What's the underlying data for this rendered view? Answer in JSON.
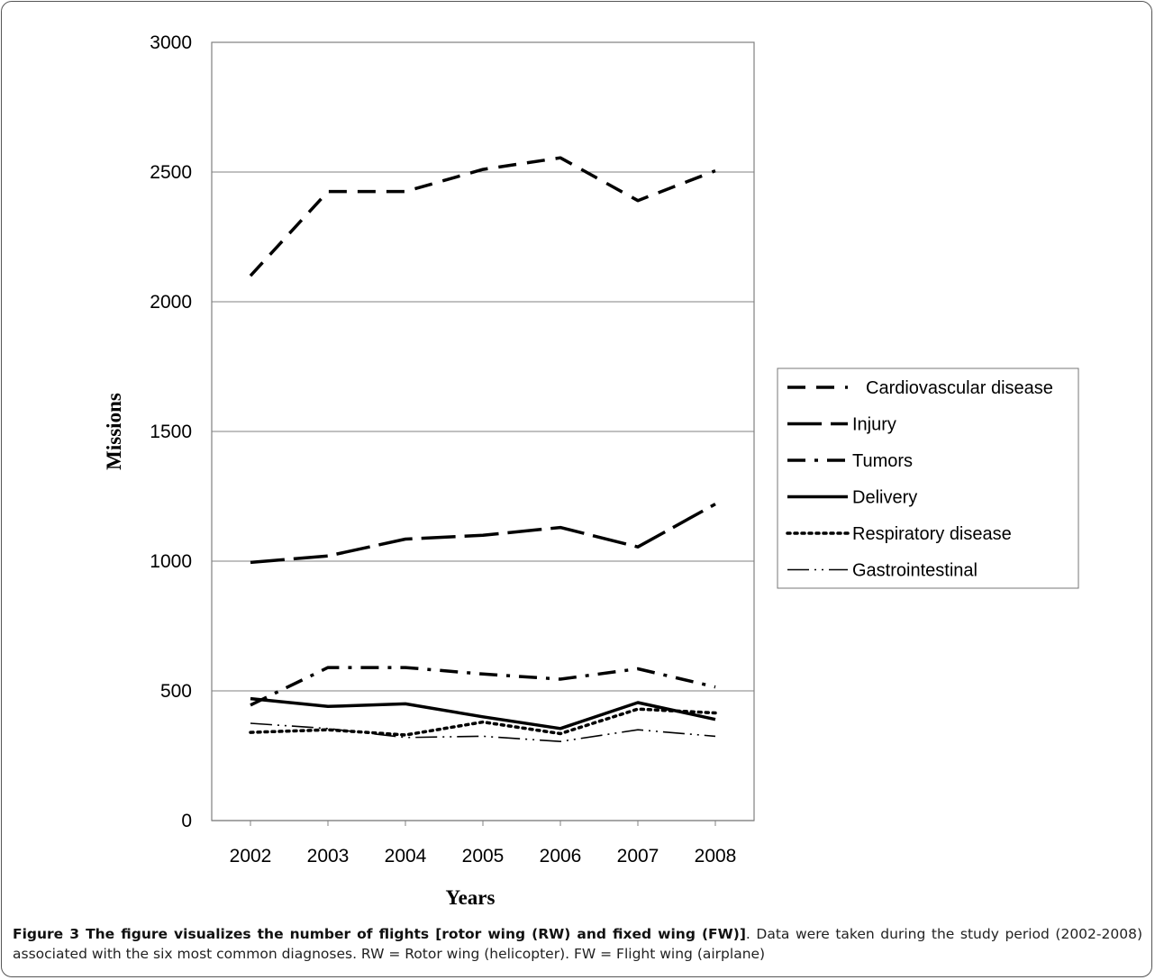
{
  "chart_data": {
    "type": "line",
    "xlabel": "Years",
    "ylabel": "Missions",
    "ylim": [
      0,
      3000
    ],
    "yticks": [
      0,
      500,
      1000,
      1500,
      2000,
      2500,
      3000
    ],
    "grid": "horizontal major gridlines",
    "legend_position": "right",
    "categories": [
      "2002",
      "2003",
      "2004",
      "2005",
      "2006",
      "2007",
      "2008"
    ],
    "series": [
      {
        "name": "Cardiovascular disease",
        "style": "dash",
        "values": [
          2100,
          2425,
          2425,
          2510,
          2555,
          2390,
          2505
        ]
      },
      {
        "name": "Injury",
        "style": "long-dash",
        "values": [
          995,
          1020,
          1085,
          1100,
          1130,
          1055,
          1220
        ]
      },
      {
        "name": "Tumors",
        "style": "dash-dot",
        "values": [
          445,
          590,
          590,
          565,
          545,
          585,
          515
        ]
      },
      {
        "name": "Delivery",
        "style": "solid",
        "values": [
          470,
          440,
          450,
          400,
          355,
          455,
          390
        ]
      },
      {
        "name": "Respiratory disease",
        "style": "dotted",
        "values": [
          340,
          350,
          330,
          380,
          335,
          430,
          415
        ]
      },
      {
        "name": "Gastrointestinal",
        "style": "long-dash-dot-dot",
        "values": [
          375,
          355,
          320,
          325,
          305,
          350,
          325
        ]
      }
    ]
  },
  "caption": {
    "label": "Figure 3 The figure visualizes the number of flights [rotor wing (RW) and fixed wing (FW)]",
    "text": ". Data were taken during the study period (2002-2008) associated with the six most common diagnoses. RW = Rotor wing (helicopter). FW = Flight wing (airplane)"
  }
}
